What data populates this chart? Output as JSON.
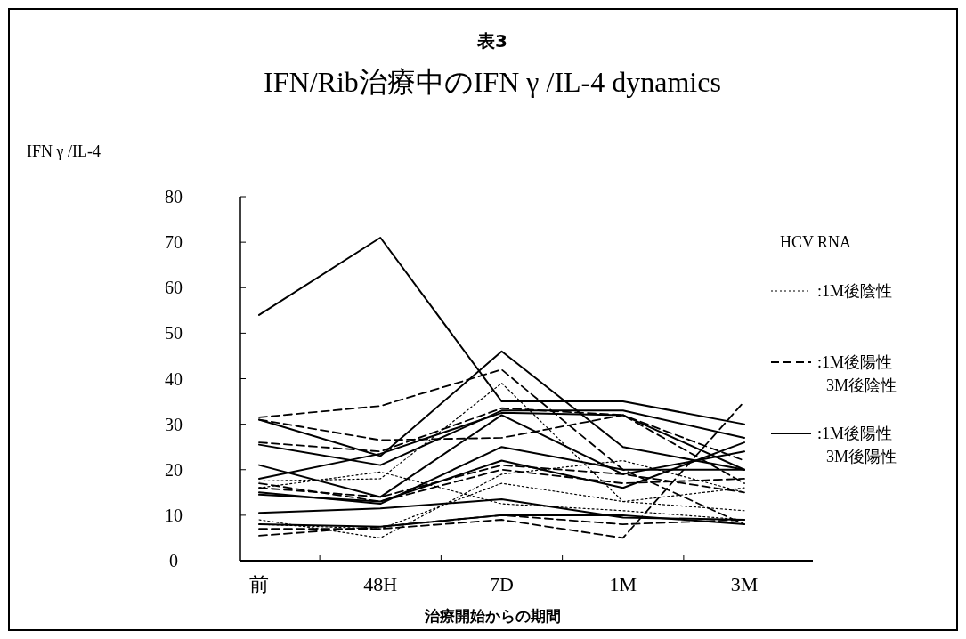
{
  "chart_data": {
    "type": "line",
    "title": "表3",
    "subtitle": "IFN/Rib治療中のIFN γ /IL-4 dynamics",
    "ylabel": "IFN γ /IL-4",
    "xlabel": "治療開始からの期間",
    "legend_title": "HCV RNA",
    "legend": "right",
    "categories": [
      "前",
      "48H",
      "7D",
      "1M",
      "3M"
    ],
    "ylim": [
      0,
      80
    ],
    "yticks": [
      0,
      10,
      20,
      30,
      40,
      50,
      60,
      70,
      80
    ],
    "grid": false,
    "series": [
      {
        "name": ":1M後陰性",
        "color": "#000000",
        "line_style": "dotted",
        "values": [
          17.5,
          18,
          39,
          13,
          11
        ]
      },
      {
        "color": "#000000",
        "line_style": "dotted",
        "values": [
          9,
          5,
          19,
          22,
          15
        ]
      },
      {
        "color": "#000000",
        "line_style": "dotted",
        "values": [
          16,
          19.5,
          12.5,
          11,
          9
        ]
      },
      {
        "color": "#000000",
        "line_style": "dotted",
        "values": [
          8,
          7,
          17,
          13,
          16
        ]
      },
      {
        "name": ":1M後陽性\n3M後陰性",
        "color": "#000000",
        "line_style": "dashed",
        "values": [
          31.5,
          34,
          42,
          20,
          8
        ]
      },
      {
        "color": "#000000",
        "line_style": "dashed",
        "values": [
          31,
          26.5,
          27,
          32,
          22
        ]
      },
      {
        "color": "#000000",
        "line_style": "dashed",
        "values": [
          26,
          24,
          33.5,
          32,
          17
        ]
      },
      {
        "color": "#000000",
        "line_style": "dashed",
        "values": [
          16,
          14,
          21,
          19,
          15
        ]
      },
      {
        "color": "#000000",
        "line_style": "dashed",
        "values": [
          7,
          7,
          9,
          5,
          35
        ]
      },
      {
        "color": "#000000",
        "line_style": "dashed",
        "values": [
          5.5,
          7.5,
          10,
          8,
          9
        ]
      },
      {
        "color": "#000000",
        "line_style": "dashed",
        "values": [
          17,
          13,
          20,
          17,
          18
        ]
      },
      {
        "name": ":1M後陽性\n3M後陽性",
        "color": "#000000",
        "line_style": "solid",
        "values": [
          54,
          71,
          35,
          35,
          30
        ]
      },
      {
        "color": "#000000",
        "line_style": "solid",
        "values": [
          31,
          23,
          46,
          25,
          20
        ]
      },
      {
        "color": "#000000",
        "line_style": "solid",
        "values": [
          25.5,
          21,
          33,
          33,
          27
        ]
      },
      {
        "color": "#000000",
        "line_style": "solid",
        "values": [
          18,
          23.5,
          32.5,
          32,
          20
        ]
      },
      {
        "color": "#000000",
        "line_style": "solid",
        "values": [
          21,
          14,
          32,
          19,
          24
        ]
      },
      {
        "color": "#000000",
        "line_style": "solid",
        "values": [
          15,
          12.5,
          25,
          20,
          20
        ]
      },
      {
        "color": "#000000",
        "line_style": "solid",
        "values": [
          10.5,
          11.5,
          13.5,
          9.5,
          9
        ]
      },
      {
        "color": "#000000",
        "line_style": "solid",
        "values": [
          14.5,
          13,
          22,
          16,
          26
        ]
      },
      {
        "color": "#000000",
        "line_style": "solid",
        "values": [
          8,
          7.5,
          10,
          10,
          8
        ]
      }
    ]
  }
}
